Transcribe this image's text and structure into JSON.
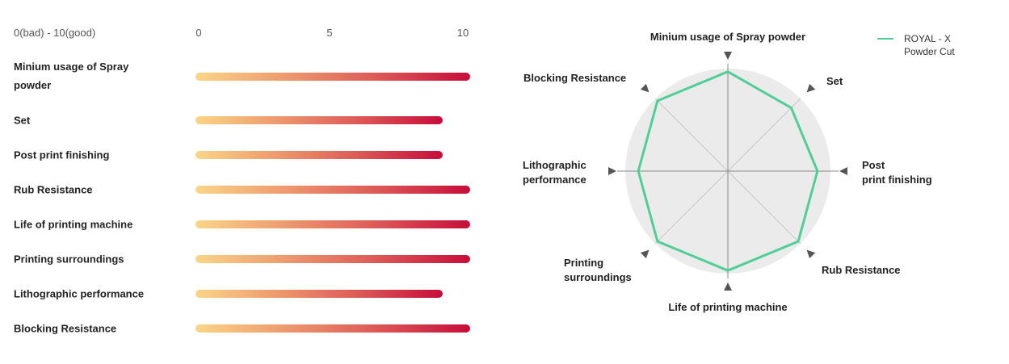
{
  "chart_data": [
    {
      "type": "bar",
      "orientation": "horizontal",
      "scale_label": "0(bad) - 10(good)",
      "ticks": [
        "0",
        "5",
        "10"
      ],
      "xlim": [
        0,
        10
      ],
      "categories": [
        "Minium usage of Spray powder",
        "Set",
        "Post print finishing",
        "Rub Resistance",
        "Life of printing machine",
        "Printing surroundings",
        "Lithographic performance",
        "Blocking Resistance"
      ],
      "values": [
        10,
        9,
        9,
        10,
        10,
        10,
        9,
        10
      ],
      "gradient": [
        "#fbd587",
        "#ef9f70",
        "#dd5b58",
        "#c70d3a"
      ]
    },
    {
      "type": "radar",
      "axes": [
        "Minium usage of Spray powder",
        "Set",
        "Post print finishing",
        "Rub Resistance",
        "Life of printing machine",
        "Printing surroundings",
        "Lithographic performance",
        "Blocking Resistance"
      ],
      "rlim": [
        0,
        10
      ],
      "series": [
        {
          "name": "ROYAL - X Powder Cut",
          "values": [
            10,
            9,
            9,
            10,
            10,
            10,
            9,
            10
          ]
        }
      ],
      "legend": {
        "line1": "ROYAL - X",
        "line2": "Powder Cut",
        "position": "top-right"
      },
      "line_color": "#4fce98",
      "fill_color": "#ebebeb"
    }
  ]
}
